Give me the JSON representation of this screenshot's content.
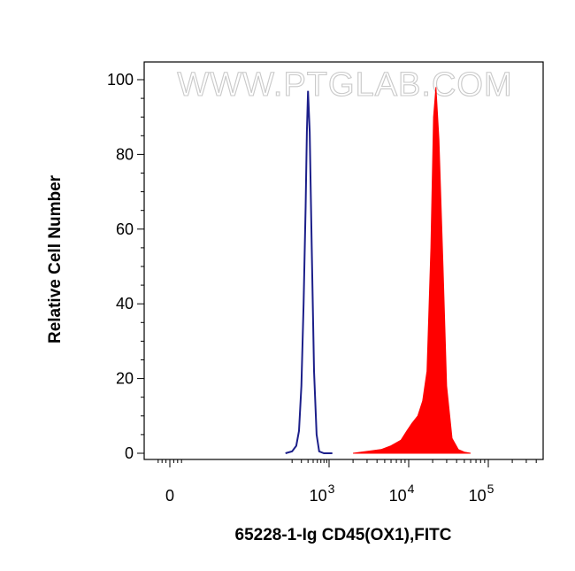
{
  "chart_data": {
    "type": "area",
    "title": "",
    "watermark": "WWW.PTGLAB.COM",
    "xlabel": "65228-1-Ig CD45(OX1),FITC",
    "ylabel": "Relative Cell Number",
    "x_scale": "biexponential",
    "y_scale": "linear",
    "ylim": [
      0,
      100
    ],
    "grid": false,
    "legend": "none",
    "y_ticks": [
      {
        "value": 0,
        "label": "0"
      },
      {
        "value": 20,
        "label": "20"
      },
      {
        "value": 40,
        "label": "40"
      },
      {
        "value": 60,
        "label": "60"
      },
      {
        "value": 80,
        "label": "80"
      },
      {
        "value": 100,
        "label": "100"
      }
    ],
    "x_ticks": [
      {
        "value": 0,
        "label": "0"
      },
      {
        "value": 1000,
        "label": "10",
        "exponent": "3"
      },
      {
        "value": 10000,
        "label": "10",
        "exponent": "4"
      },
      {
        "value": 100000,
        "label": "10",
        "exponent": "5"
      }
    ],
    "series": [
      {
        "style": "outline",
        "color": "#1c1f8a",
        "x": [
          150,
          200,
          240,
          270,
          300,
          330,
          360,
          380,
          400,
          430,
          470,
          520,
          580,
          650,
          800,
          1100
        ],
        "y": [
          0,
          0.5,
          2,
          6,
          18,
          40,
          66,
          86,
          97,
          86,
          55,
          22,
          5,
          0.5,
          0,
          0
        ]
      },
      {
        "style": "filled",
        "color": "#ff0000",
        "x": [
          2000,
          3000,
          4500,
          6000,
          8000,
          9500,
          11000,
          13000,
          15000,
          17000,
          19000,
          20500,
          22000,
          24000,
          27000,
          30000,
          35000,
          42000,
          50000,
          60000
        ],
        "y": [
          0,
          0.5,
          1,
          2,
          3.5,
          6,
          8,
          10,
          14,
          22,
          55,
          90,
          98,
          84,
          50,
          18,
          4,
          1,
          0.3,
          0
        ]
      }
    ]
  }
}
